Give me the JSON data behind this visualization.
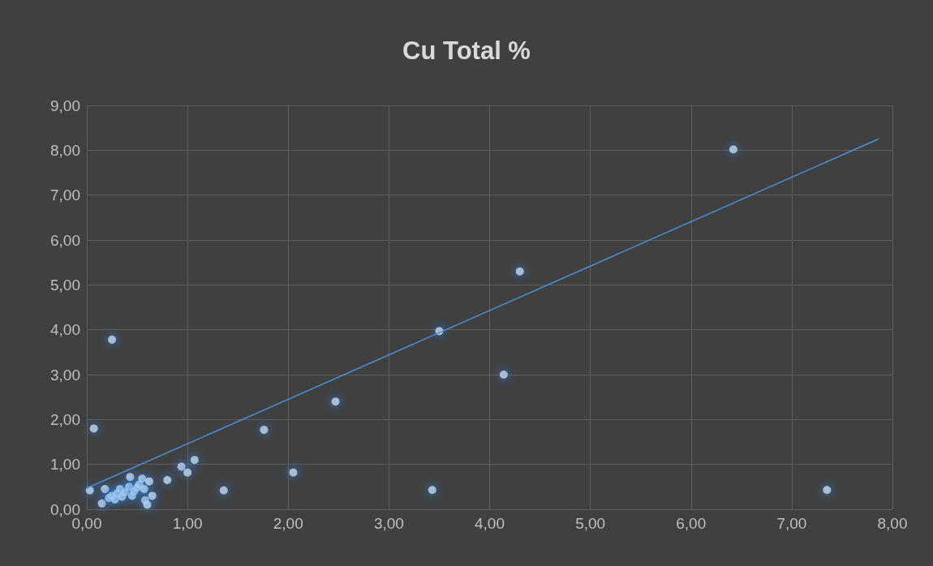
{
  "chart_data": {
    "type": "scatter",
    "title": "Cu Total %",
    "series": [
      {
        "color": "#bdd7ee",
        "x": [
          0.03,
          0.07,
          0.25,
          0.18,
          0.15,
          0.22,
          0.25,
          0.28,
          0.3,
          0.33,
          0.35,
          0.38,
          0.42,
          0.43,
          0.45,
          0.47,
          0.5,
          0.52,
          0.55,
          0.57,
          0.58,
          0.6,
          0.62,
          0.65,
          0.8,
          0.94,
          1.0,
          1.07,
          1.36,
          1.76,
          2.05,
          2.47,
          3.43,
          3.5,
          4.14,
          4.3,
          6.42,
          7.35
        ],
        "values": [
          0.42,
          1.8,
          3.78,
          0.45,
          0.13,
          0.25,
          0.3,
          0.22,
          0.35,
          0.45,
          0.28,
          0.38,
          0.5,
          0.72,
          0.3,
          0.4,
          0.48,
          0.55,
          0.68,
          0.45,
          0.2,
          0.1,
          0.62,
          0.3,
          0.65,
          0.95,
          0.82,
          1.1,
          0.42,
          1.77,
          0.82,
          2.4,
          0.43,
          3.97,
          3.0,
          5.3,
          8.02,
          0.43
        ]
      },
      {
        "type": "line",
        "marker": "none",
        "color": "#4a8fd9",
        "x": [
          0,
          7.86
        ],
        "values": [
          0.47,
          8.25
        ]
      }
    ],
    "xlim": [
      0,
      8
    ],
    "ylim": [
      0,
      9
    ],
    "xticks": [
      {
        "value": 0,
        "label": "0,00"
      },
      {
        "value": 1,
        "label": "1,00"
      },
      {
        "value": 2,
        "label": "2,00"
      },
      {
        "value": 3,
        "label": "3,00"
      },
      {
        "value": 4,
        "label": "4,00"
      },
      {
        "value": 5,
        "label": "5,00"
      },
      {
        "value": 6,
        "label": "6,00"
      },
      {
        "value": 7,
        "label": "7,00"
      },
      {
        "value": 8,
        "label": "8,00"
      }
    ],
    "yticks": [
      {
        "value": 0,
        "label": "0,00"
      },
      {
        "value": 1,
        "label": "1,00"
      },
      {
        "value": 2,
        "label": "2,00"
      },
      {
        "value": 3,
        "label": "3,00"
      },
      {
        "value": 4,
        "label": "4,00"
      },
      {
        "value": 5,
        "label": "5,00"
      },
      {
        "value": 6,
        "label": "6,00"
      },
      {
        "value": 7,
        "label": "7,00"
      },
      {
        "value": 8,
        "label": "8,00"
      },
      {
        "value": 9,
        "label": "9,00"
      }
    ],
    "grid": true,
    "marker": "circle"
  }
}
